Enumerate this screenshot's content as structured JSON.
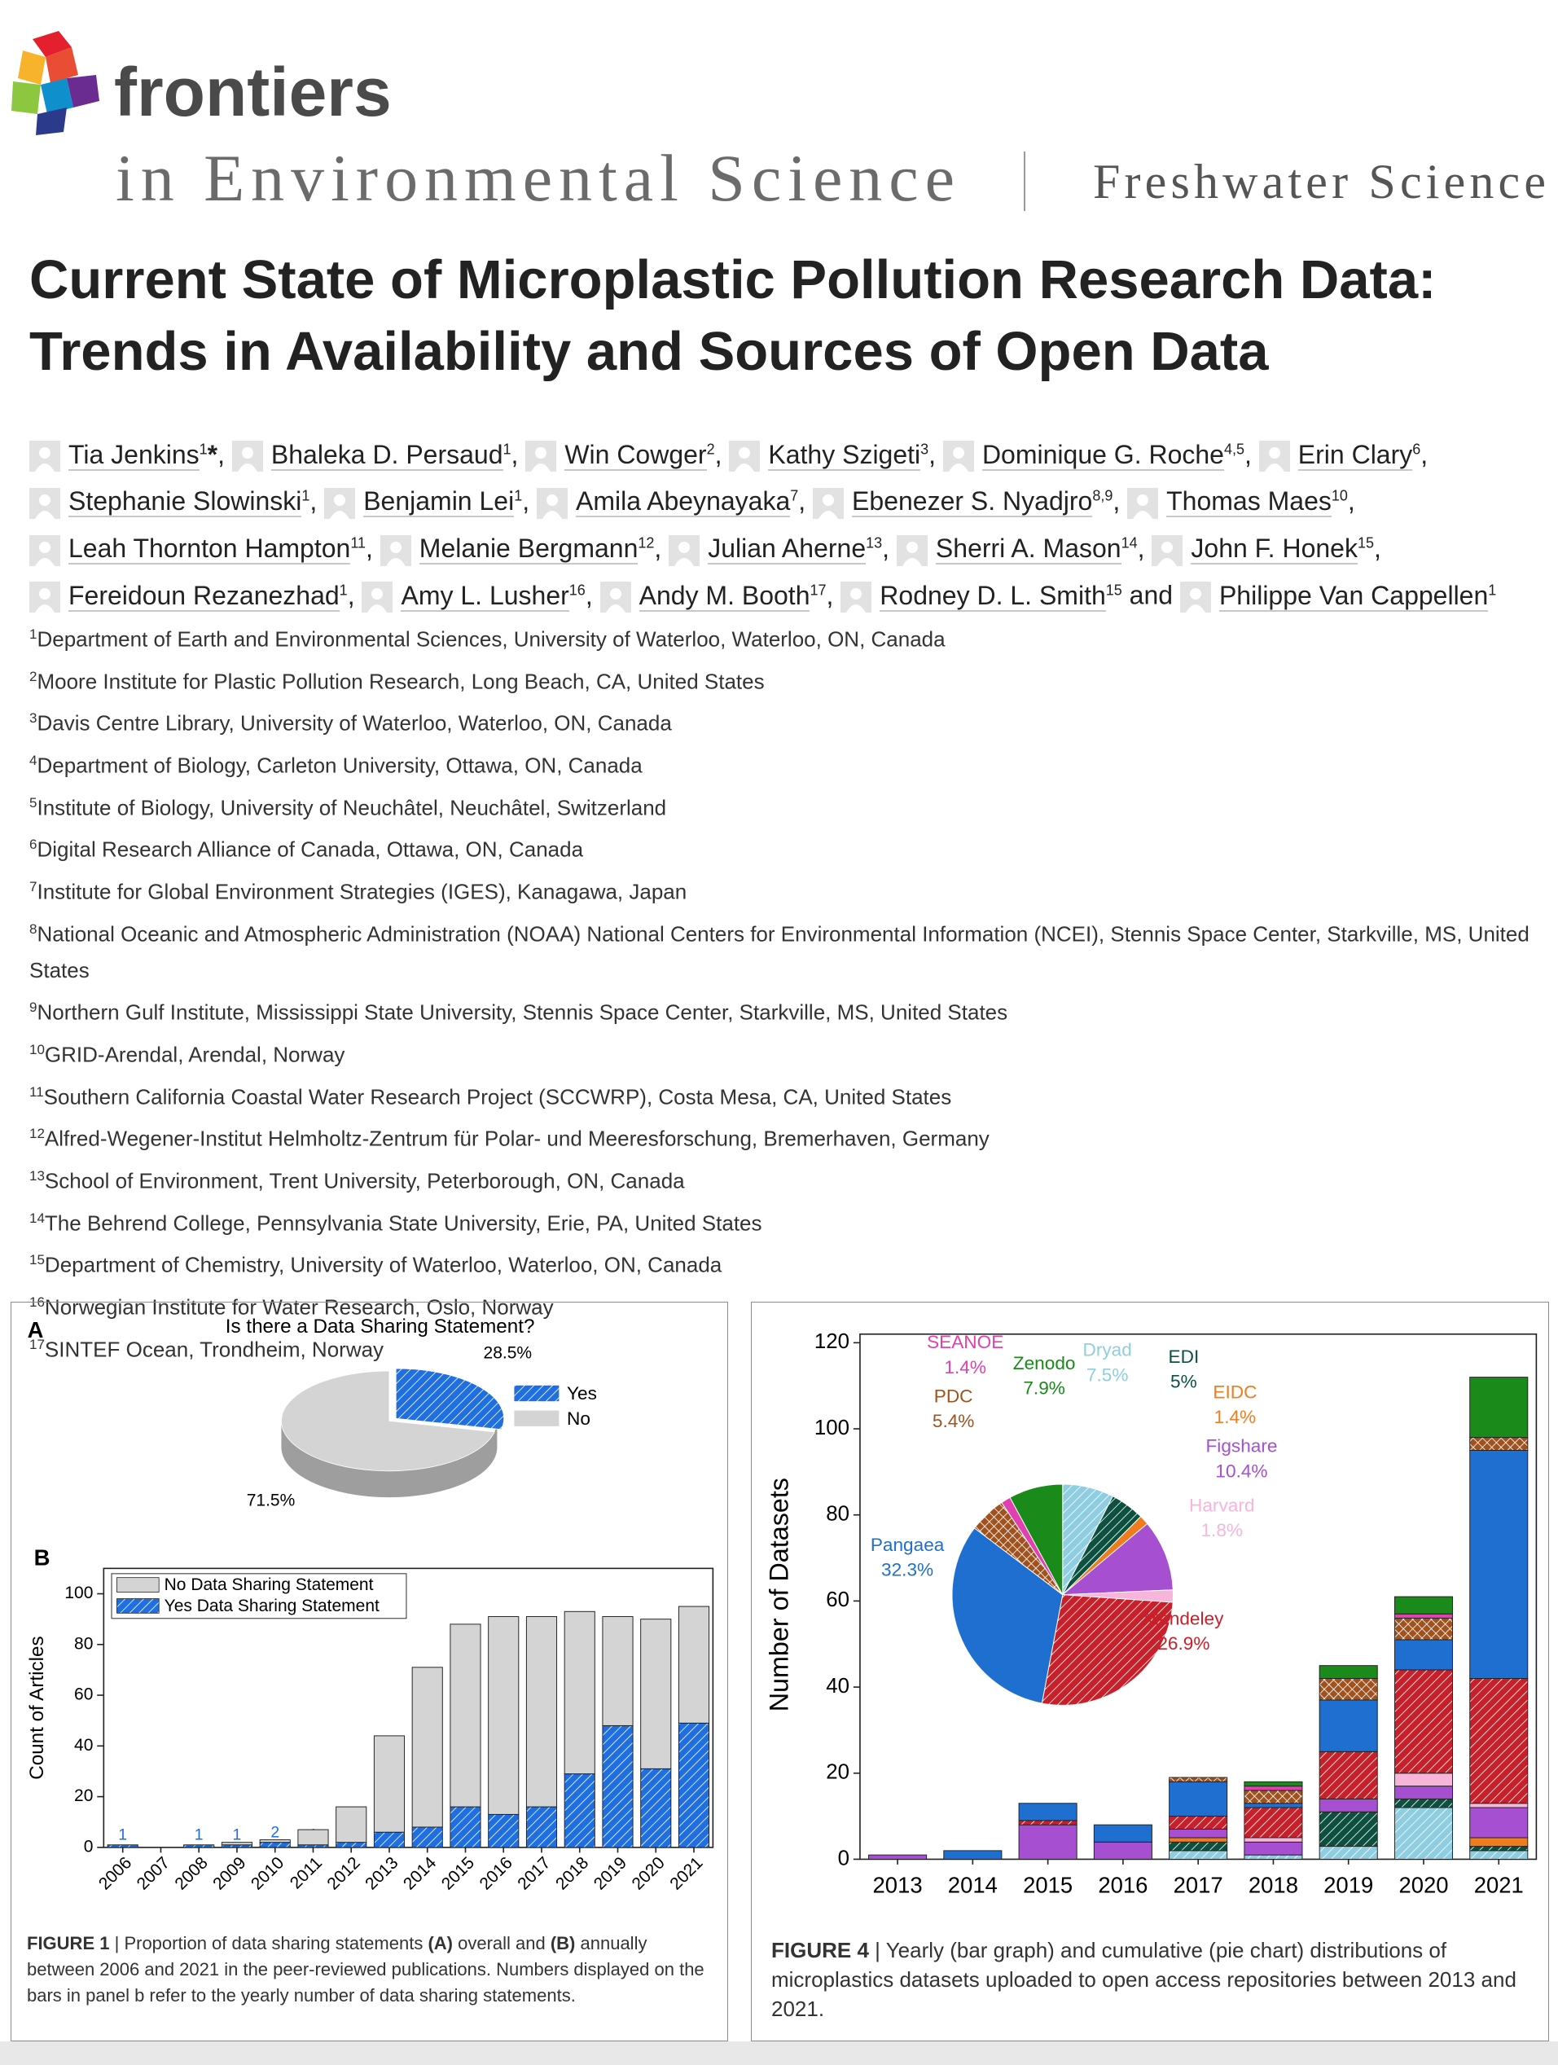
{
  "header": {
    "brand": "frontiers",
    "journal": "in Environmental Science",
    "section": "Freshwater Science"
  },
  "title": "Current State of Microplastic Pollution Research Data: Trends in Availability and Sources of Open Data",
  "authors": {
    "separator": ",",
    "conjunction": "and",
    "list": [
      {
        "name": "Tia Jenkins",
        "affil": "1",
        "corresponding": "*"
      },
      {
        "name": "Bhaleka D. Persaud",
        "affil": "1"
      },
      {
        "name": "Win Cowger",
        "affil": "2"
      },
      {
        "name": "Kathy Szigeti",
        "affil": "3"
      },
      {
        "name": "Dominique G. Roche",
        "affil": "4,5"
      },
      {
        "name": "Erin Clary",
        "affil": "6"
      },
      {
        "name": "Stephanie Slowinski",
        "affil": "1"
      },
      {
        "name": "Benjamin Lei",
        "affil": "1"
      },
      {
        "name": "Amila Abeynayaka",
        "affil": "7"
      },
      {
        "name": "Ebenezer S. Nyadjro",
        "affil": "8,9"
      },
      {
        "name": "Thomas Maes",
        "affil": "10"
      },
      {
        "name": "Leah Thornton Hampton",
        "affil": "11"
      },
      {
        "name": "Melanie Bergmann",
        "affil": "12"
      },
      {
        "name": "Julian Aherne",
        "affil": "13"
      },
      {
        "name": "Sherri A. Mason",
        "affil": "14"
      },
      {
        "name": "John F. Honek",
        "affil": "15"
      },
      {
        "name": "Fereidoun Rezanezhad",
        "affil": "1"
      },
      {
        "name": "Amy L. Lusher",
        "affil": "16"
      },
      {
        "name": "Andy M. Booth",
        "affil": "17"
      },
      {
        "name": "Rodney D. L. Smith",
        "affil": "15"
      },
      {
        "name": "Philippe Van Cappellen",
        "affil": "1"
      }
    ]
  },
  "affiliations": [
    {
      "num": "1",
      "text": "Department of Earth and Environmental Sciences, University of Waterloo, Waterloo, ON, Canada"
    },
    {
      "num": "2",
      "text": "Moore Institute for Plastic Pollution Research, Long Beach, CA, United States"
    },
    {
      "num": "3",
      "text": "Davis Centre Library, University of Waterloo, Waterloo, ON, Canada"
    },
    {
      "num": "4",
      "text": "Department of Biology, Carleton University, Ottawa, ON, Canada"
    },
    {
      "num": "5",
      "text": "Institute of Biology, University of Neuchâtel, Neuchâtel, Switzerland"
    },
    {
      "num": "6",
      "text": "Digital Research Alliance of Canada, Ottawa, ON, Canada"
    },
    {
      "num": "7",
      "text": "Institute for Global Environment Strategies (IGES), Kanagawa, Japan"
    },
    {
      "num": "8",
      "text": "National Oceanic and Atmospheric Administration (NOAA) National Centers for Environmental Information (NCEI), Stennis Space Center, Starkville, MS, United States"
    },
    {
      "num": "9",
      "text": "Northern Gulf Institute, Mississippi State University, Stennis Space Center, Starkville, MS, United States"
    },
    {
      "num": "10",
      "text": "GRID-Arendal, Arendal, Norway"
    },
    {
      "num": "11",
      "text": "Southern California Coastal Water Research Project (SCCWRP), Costa Mesa, CA, United States"
    },
    {
      "num": "12",
      "text": "Alfred-Wegener-Institut Helmholtz-Zentrum für Polar- und Meeresforschung, Bremerhaven, Germany"
    },
    {
      "num": "13",
      "text": "School of Environment, Trent University, Peterborough, ON, Canada"
    },
    {
      "num": "14",
      "text": "The Behrend College, Pennsylvania State University, Erie, PA, United States"
    },
    {
      "num": "15",
      "text": "Department of Chemistry, University of Waterloo, Waterloo, ON, Canada"
    },
    {
      "num": "16",
      "text": "Norwegian Institute for Water Research, Oslo, Norway"
    },
    {
      "num": "17",
      "text": "SINTEF Ocean, Trondheim, Norway"
    }
  ],
  "figure1": {
    "panel_a": {
      "type": "pie",
      "label": "A",
      "title": "Is there a Data Sharing Statement?",
      "labels": [
        "Yes",
        "No"
      ],
      "values": [
        28.5,
        71.5
      ],
      "value_labels": [
        "28.5%",
        "71.5%"
      ],
      "colors": [
        "#1f6fe0",
        "#d4d4d4"
      ]
    },
    "panel_b": {
      "type": "bar",
      "label": "B",
      "y_label": "Count of Articles",
      "categories": [
        "2006",
        "2007",
        "2008",
        "2009",
        "2010",
        "2011",
        "2012",
        "2013",
        "2014",
        "2015",
        "2016",
        "2017",
        "2018",
        "2019",
        "2020",
        "2021"
      ],
      "series": [
        {
          "name": "Yes Data Sharing Statement",
          "color": "#1f6fe0",
          "hatch": "diagonal",
          "values": [
            1,
            null,
            1,
            1,
            2,
            1,
            2,
            6,
            8,
            16,
            13,
            16,
            29,
            48,
            31,
            49
          ]
        },
        {
          "name": "No Data Sharing Statement",
          "color": "#d4d4d4",
          "values": [
            0,
            0,
            0,
            1,
            1,
            6,
            14,
            38,
            63,
            72,
            78,
            75,
            64,
            43,
            59,
            46
          ]
        }
      ],
      "ylim": [
        0,
        110
      ],
      "yticks": [
        0,
        20,
        40,
        60,
        80,
        100
      ]
    },
    "caption": {
      "label": "FIGURE 1",
      "separator": "|",
      "parts": [
        {
          "text": "Proportion of data sharing statements "
        },
        {
          "text": "(A)",
          "bold": true
        },
        {
          "text": " overall and "
        },
        {
          "text": "(B)",
          "bold": true
        },
        {
          "text": " annually between 2006 and 2021 in the peer-reviewed publications. Numbers displayed on the bars in panel b refer to the yearly number of data sharing statements."
        }
      ]
    }
  },
  "figure4": {
    "type": "bar",
    "y_label": "Number of Datasets",
    "categories": [
      "2013",
      "2014",
      "2015",
      "2016",
      "2017",
      "2018",
      "2019",
      "2020",
      "2021"
    ],
    "ylim": [
      0,
      122
    ],
    "yticks": [
      0,
      20,
      40,
      60,
      80,
      100,
      120
    ],
    "series": [
      {
        "name": "Dryad",
        "color": "#8fcde0",
        "hatch": "diagonal",
        "values": [
          0,
          0,
          0,
          0,
          2,
          1,
          3,
          12,
          2
        ]
      },
      {
        "name": "EDI",
        "color": "#0e5040",
        "hatch": "diagonal",
        "values": [
          0,
          0,
          0,
          0,
          2,
          0,
          8,
          2,
          1
        ]
      },
      {
        "name": "EIDC",
        "color": "#f07c1e",
        "values": [
          0,
          0,
          0,
          0,
          1,
          0,
          0,
          0,
          2
        ]
      },
      {
        "name": "Figshare",
        "color": "#a64fd0",
        "values": [
          1,
          0,
          8,
          4,
          2,
          3,
          3,
          3,
          7
        ]
      },
      {
        "name": "Harvard",
        "color": "#f7b5da",
        "values": [
          0,
          0,
          0,
          0,
          0,
          1,
          0,
          3,
          1
        ]
      },
      {
        "name": "Mendeley",
        "color": "#c8202a",
        "hatch": "diagonal",
        "values": [
          0,
          0,
          1,
          0,
          3,
          7,
          11,
          24,
          29
        ]
      },
      {
        "name": "Pangaea",
        "color": "#1e6fd0",
        "values": [
          0,
          2,
          4,
          4,
          8,
          1,
          12,
          7,
          53
        ]
      },
      {
        "name": "PDC",
        "color": "#a0521e",
        "hatch": "cross",
        "values": [
          0,
          0,
          0,
          0,
          1,
          3,
          5,
          5,
          3
        ]
      },
      {
        "name": "SEANOE",
        "color": "#e040b0",
        "values": [
          0,
          0,
          0,
          0,
          0,
          1,
          0,
          1,
          0
        ]
      },
      {
        "name": "Zenodo",
        "color": "#1a8a1a",
        "values": [
          0,
          0,
          0,
          0,
          0,
          1,
          3,
          4,
          14
        ]
      }
    ],
    "pie": {
      "values": [
        7.5,
        5,
        1.4,
        10.4,
        1.8,
        26.9,
        32.3,
        5.4,
        1.4,
        7.9
      ],
      "value_labels": [
        "7.5%",
        "5%",
        "1.4%",
        "10.4%",
        "1.8%",
        "26.9%",
        "32.3%",
        "5.4%",
        "1.4%",
        "7.9%"
      ]
    },
    "caption": {
      "label": "FIGURE 4",
      "separator": "|",
      "parts": [
        {
          "text": "Yearly (bar graph) and cumulative (pie chart) distributions of microplastics datasets uploaded to open access repositories between 2013 and 2021."
        }
      ]
    }
  }
}
